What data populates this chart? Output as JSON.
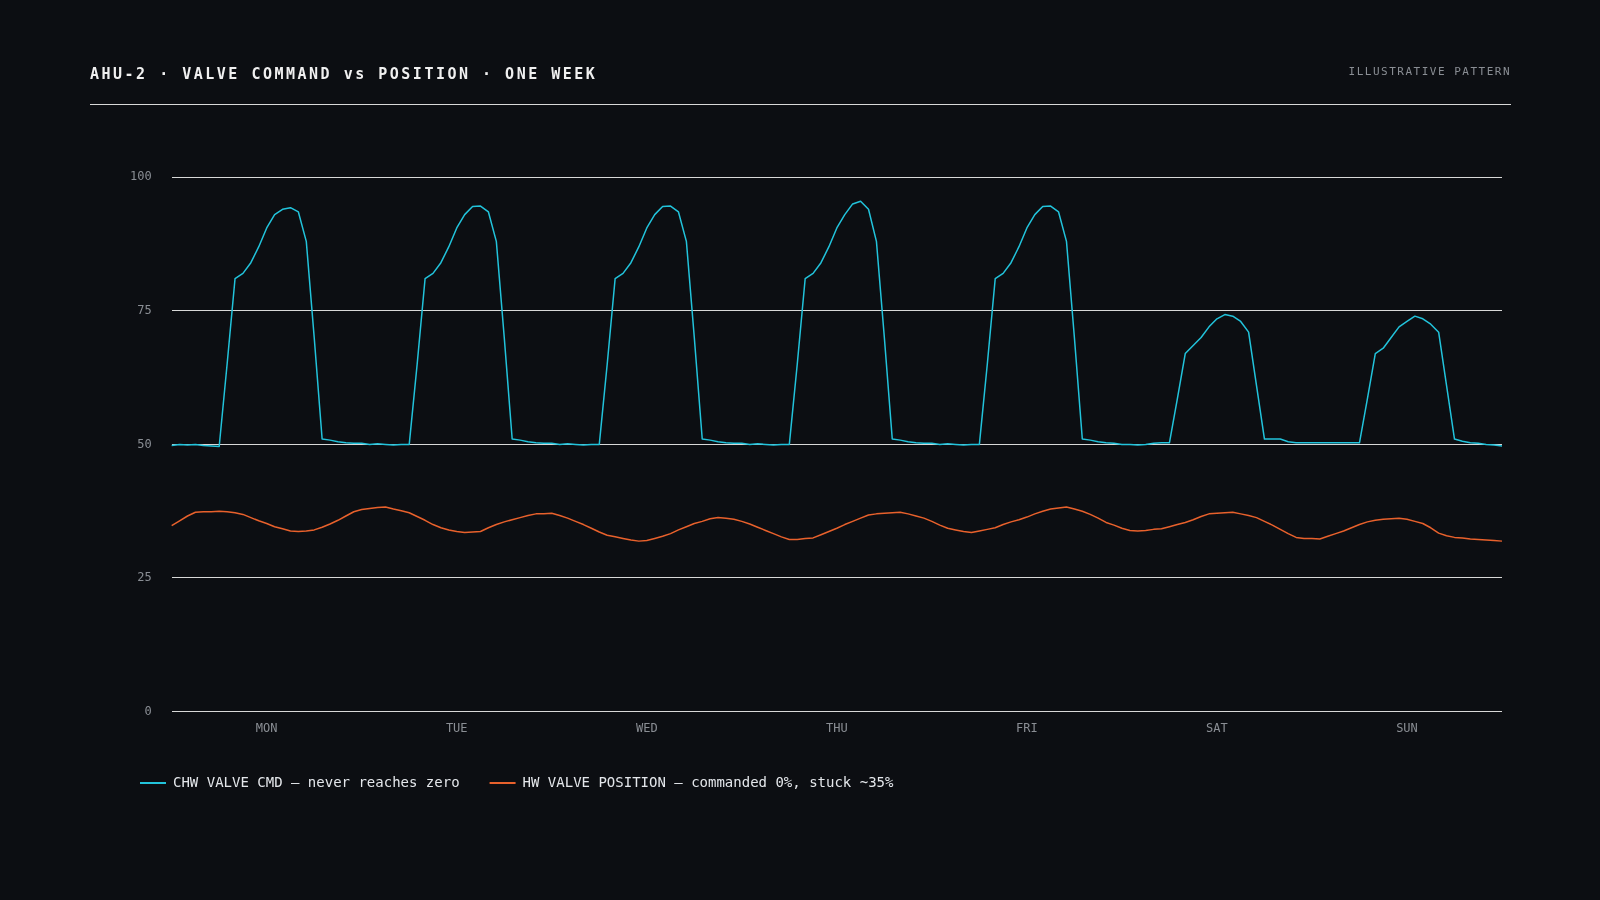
{
  "chart_data": {
    "type": "line",
    "title": "AHU-2 · VALVE COMMAND vs POSITION · ONE WEEK",
    "annotations": [
      "ILLUSTRATIVE PATTERN"
    ],
    "categories": [
      null,
      null,
      null,
      null,
      null,
      null,
      null,
      null,
      null,
      null,
      null,
      null,
      "MON",
      null,
      null,
      null,
      null,
      null,
      null,
      null,
      null,
      null,
      null,
      null,
      null,
      null,
      null,
      null,
      null,
      null,
      null,
      null,
      null,
      null,
      null,
      null,
      "TUE",
      null,
      null,
      null,
      null,
      null,
      null,
      null,
      null,
      null,
      null,
      null,
      null,
      null,
      null,
      null,
      null,
      null,
      null,
      null,
      null,
      null,
      null,
      null,
      "WED",
      null,
      null,
      null,
      null,
      null,
      null,
      null,
      null,
      null,
      null,
      null,
      null,
      null,
      null,
      null,
      null,
      null,
      null,
      null,
      null,
      null,
      null,
      null,
      "THU",
      null,
      null,
      null,
      null,
      null,
      null,
      null,
      null,
      null,
      null,
      null,
      null,
      null,
      null,
      null,
      null,
      null,
      null,
      null,
      null,
      null,
      null,
      null,
      "FRI",
      null,
      null,
      null,
      null,
      null,
      null,
      null,
      null,
      null,
      null,
      null,
      null,
      null,
      null,
      null,
      null,
      null,
      null,
      null,
      null,
      null,
      null,
      null,
      "SAT",
      null,
      null,
      null,
      null,
      null,
      null,
      null,
      null,
      null,
      null,
      null,
      null,
      null,
      null,
      null,
      null,
      null,
      null,
      null,
      null,
      null,
      null,
      null,
      "SUN",
      null,
      null,
      null,
      null,
      null,
      null,
      null,
      null,
      null,
      null,
      null,
      null
    ],
    "ylim": [
      0,
      100
    ],
    "yticks": [
      0,
      25,
      50,
      75,
      100
    ],
    "grid": "y",
    "legend": "bottom",
    "marker": "none",
    "line_style": "solid",
    "series": [
      {
        "name": "CHW VALVE CMD — never reaches zero",
        "color": "#22c3db",
        "values": [
          49.8,
          50,
          49.9,
          50,
          49.8,
          49.7,
          49.6,
          65,
          81,
          82,
          84,
          87,
          90.5,
          93,
          94,
          94.3,
          93.5,
          88,
          70,
          51,
          50.8,
          50.5,
          50.3,
          50.2,
          50.2,
          50,
          50.1,
          50,
          49.9,
          50,
          50,
          65,
          81,
          82,
          84,
          87,
          90.5,
          93,
          94.5,
          94.6,
          93.5,
          88,
          70,
          51,
          50.8,
          50.5,
          50.3,
          50.2,
          50.2,
          50,
          50.1,
          50,
          49.9,
          50,
          50,
          65,
          81,
          82,
          84,
          87,
          90.5,
          93,
          94.5,
          94.6,
          93.5,
          88,
          70,
          51,
          50.8,
          50.5,
          50.3,
          50.2,
          50.2,
          50,
          50.1,
          50,
          49.9,
          50,
          50,
          65,
          81,
          82,
          84,
          87,
          90.5,
          93,
          95,
          95.5,
          94,
          88,
          70,
          51,
          50.8,
          50.5,
          50.3,
          50.2,
          50.2,
          50,
          50.1,
          50,
          49.9,
          50,
          50,
          65,
          81,
          82,
          84,
          87,
          90.5,
          93,
          94.5,
          94.6,
          93.5,
          88,
          70,
          51,
          50.8,
          50.5,
          50.3,
          50.2,
          50,
          50,
          49.9,
          50,
          50.2,
          50.3,
          50.3,
          58.5,
          67,
          68.5,
          70,
          72,
          73.5,
          74.3,
          74,
          73,
          71,
          61,
          51,
          51,
          51,
          50.5,
          50.3,
          50.3,
          50.3,
          50.3,
          50.3,
          50.3,
          50.3,
          50.3,
          50.3,
          58.5,
          67,
          68,
          70,
          72,
          73,
          74,
          73.5,
          72.5,
          71,
          61,
          51,
          50.6,
          50.3,
          50.2,
          50,
          49.9,
          49.7
        ]
      },
      {
        "name": "HW VALVE POSITION — commanded 0%, stuck ~35%",
        "color": "#e8612c",
        "values": [
          34.8,
          35.7,
          36.6,
          37.3,
          37.4,
          37.4,
          37.5,
          37.4,
          37.2,
          36.9,
          36.3,
          35.7,
          35.2,
          34.6,
          34.2,
          33.8,
          33.7,
          33.8,
          34,
          34.5,
          35.1,
          35.8,
          36.6,
          37.4,
          37.8,
          38,
          38.2,
          38.3,
          37.9,
          37.6,
          37.2,
          36.5,
          35.8,
          35,
          34.4,
          34,
          33.7,
          33.5,
          33.6,
          33.7,
          34.4,
          35,
          35.5,
          35.9,
          36.3,
          36.7,
          37,
          37,
          37.1,
          36.7,
          36.2,
          35.6,
          35,
          34.3,
          33.6,
          33,
          32.7,
          32.4,
          32.1,
          31.9,
          32,
          32.4,
          32.8,
          33.3,
          34,
          34.6,
          35.2,
          35.6,
          36.1,
          36.3,
          36.2,
          36,
          35.6,
          35.1,
          34.5,
          33.9,
          33.3,
          32.7,
          32.2,
          32.2,
          32.4,
          32.5,
          33.1,
          33.7,
          34.3,
          35,
          35.6,
          36.2,
          36.8,
          37,
          37.1,
          37.2,
          37.3,
          37,
          36.6,
          36.2,
          35.6,
          34.9,
          34.3,
          34,
          33.7,
          33.5,
          33.8,
          34.1,
          34.4,
          35,
          35.5,
          35.9,
          36.4,
          37,
          37.5,
          37.9,
          38.1,
          38.3,
          37.9,
          37.5,
          36.9,
          36.2,
          35.4,
          34.9,
          34.3,
          33.9,
          33.8,
          33.9,
          34.1,
          34.2,
          34.6,
          35,
          35.4,
          35.9,
          36.5,
          37,
          37.1,
          37.2,
          37.3,
          37,
          36.7,
          36.3,
          35.6,
          34.9,
          34.1,
          33.3,
          32.6,
          32.4,
          32.4,
          32.3,
          32.8,
          33.3,
          33.8,
          34.4,
          35,
          35.5,
          35.8,
          36,
          36.1,
          36.2,
          36,
          35.6,
          35.2,
          34.4,
          33.4,
          32.9,
          32.6,
          32.5,
          32.3,
          32.2,
          32.1,
          32,
          31.9
        ]
      }
    ]
  }
}
